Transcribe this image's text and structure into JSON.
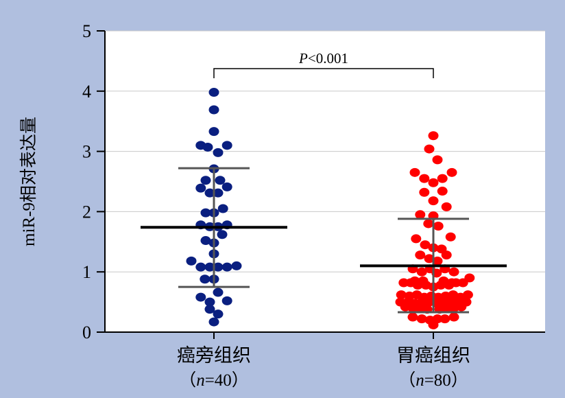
{
  "chart_data": {
    "type": "scatter",
    "ylabel": "miR-9相对表达量",
    "ylim": [
      0,
      5
    ],
    "yticks": [
      0,
      1,
      2,
      3,
      4,
      5
    ],
    "grid": true,
    "categories": [
      {
        "name": "癌旁组织",
        "n_label": "（n=40）",
        "n_prefix": "（",
        "n_italic": "n",
        "n_suffix": "=40）"
      },
      {
        "name": "胃癌组织",
        "n_label": "（n=80）",
        "n_prefix": "（",
        "n_italic": "n",
        "n_suffix": "=80）"
      }
    ],
    "annotation": {
      "text": "P<0.001",
      "italic": "P",
      "rest": "<0.001"
    },
    "colors": {
      "group1": "#0a1f80",
      "group2": "#ff0000",
      "summary": "#000000",
      "whisker": "#555555",
      "background": "#b0bfdf",
      "plot_bg": "#ffffff",
      "grid": "#c8c8c8"
    },
    "series": [
      {
        "group": 0,
        "mean": 1.74,
        "sd_upper": 2.72,
        "sd_lower": 0.75,
        "points": [
          [
            0,
            3.98
          ],
          [
            0,
            3.69
          ],
          [
            0,
            3.33
          ],
          [
            -0.32,
            3.1
          ],
          [
            -0.15,
            3.07
          ],
          [
            0.1,
            2.98
          ],
          [
            0.32,
            3.1
          ],
          [
            0,
            2.71
          ],
          [
            -0.2,
            2.52
          ],
          [
            0.15,
            2.52
          ],
          [
            -0.32,
            2.39
          ],
          [
            -0.1,
            2.31
          ],
          [
            0.1,
            2.31
          ],
          [
            0.32,
            2.41
          ],
          [
            -0.2,
            1.98
          ],
          [
            0,
            1.98
          ],
          [
            0.22,
            2.05
          ],
          [
            -0.32,
            1.78
          ],
          [
            -0.1,
            1.75
          ],
          [
            0.1,
            1.75
          ],
          [
            0.32,
            1.78
          ],
          [
            -0.2,
            1.52
          ],
          [
            0,
            1.48
          ],
          [
            0.2,
            1.62
          ],
          [
            0,
            1.3
          ],
          [
            -0.55,
            1.18
          ],
          [
            -0.32,
            1.08
          ],
          [
            -0.1,
            1.08
          ],
          [
            0.1,
            1.08
          ],
          [
            0.32,
            1.08
          ],
          [
            0.55,
            1.1
          ],
          [
            -0.22,
            0.88
          ],
          [
            0,
            0.88
          ],
          [
            -0.32,
            0.58
          ],
          [
            -0.1,
            0.5
          ],
          [
            0.1,
            0.66
          ],
          [
            0.32,
            0.52
          ],
          [
            -0.1,
            0.38
          ],
          [
            0.1,
            0.3
          ],
          [
            0,
            0.17
          ]
        ]
      },
      {
        "group": 1,
        "mean": 1.1,
        "sd_upper": 1.88,
        "sd_lower": 0.33,
        "points": [
          [
            0,
            3.26
          ],
          [
            -0.1,
            3.04
          ],
          [
            0.1,
            2.86
          ],
          [
            -0.45,
            2.65
          ],
          [
            -0.22,
            2.55
          ],
          [
            0,
            2.48
          ],
          [
            0.22,
            2.55
          ],
          [
            0.45,
            2.65
          ],
          [
            -0.22,
            2.32
          ],
          [
            0.22,
            2.34
          ],
          [
            0,
            2.18
          ],
          [
            -0.32,
            1.95
          ],
          [
            0,
            1.93
          ],
          [
            0.32,
            2.08
          ],
          [
            -0.12,
            1.8
          ],
          [
            0.12,
            1.76
          ],
          [
            -0.42,
            1.55
          ],
          [
            -0.2,
            1.45
          ],
          [
            0,
            1.4
          ],
          [
            0.2,
            1.38
          ],
          [
            0.42,
            1.58
          ],
          [
            -0.32,
            1.28
          ],
          [
            -0.1,
            1.22
          ],
          [
            0.1,
            1.18
          ],
          [
            0.32,
            1.28
          ],
          [
            -0.5,
            1.05
          ],
          [
            -0.28,
            1.0
          ],
          [
            -0.08,
            1.05
          ],
          [
            0.08,
            0.98
          ],
          [
            0.28,
            1.05
          ],
          [
            0.5,
            1.0
          ],
          [
            -0.45,
            0.85
          ],
          [
            -0.25,
            0.85
          ],
          [
            0.25,
            0.85
          ],
          [
            0.45,
            0.82
          ],
          [
            -0.72,
            0.82
          ],
          [
            -0.55,
            0.82
          ],
          [
            -0.38,
            0.78
          ],
          [
            -0.18,
            0.78
          ],
          [
            0,
            0.75
          ],
          [
            0.18,
            0.78
          ],
          [
            0.38,
            0.78
          ],
          [
            0.55,
            0.82
          ],
          [
            0.72,
            0.82
          ],
          [
            0.88,
            0.9
          ],
          [
            -0.78,
            0.62
          ],
          [
            -0.58,
            0.6
          ],
          [
            -0.4,
            0.62
          ],
          [
            -0.22,
            0.58
          ],
          [
            -0.05,
            0.6
          ],
          [
            0.12,
            0.58
          ],
          [
            0.3,
            0.6
          ],
          [
            0.48,
            0.62
          ],
          [
            0.66,
            0.58
          ],
          [
            0.84,
            0.62
          ],
          [
            -0.8,
            0.5
          ],
          [
            -0.62,
            0.5
          ],
          [
            -0.45,
            0.48
          ],
          [
            -0.28,
            0.5
          ],
          [
            -0.1,
            0.5
          ],
          [
            0.08,
            0.48
          ],
          [
            0.26,
            0.5
          ],
          [
            0.44,
            0.52
          ],
          [
            0.62,
            0.5
          ],
          [
            0.8,
            0.5
          ],
          [
            -0.68,
            0.42
          ],
          [
            -0.5,
            0.4
          ],
          [
            -0.32,
            0.4
          ],
          [
            -0.15,
            0.38
          ],
          [
            0.15,
            0.38
          ],
          [
            0.32,
            0.4
          ],
          [
            0.5,
            0.4
          ],
          [
            0.68,
            0.42
          ],
          [
            -0.5,
            0.25
          ],
          [
            -0.28,
            0.22
          ],
          [
            -0.08,
            0.2
          ],
          [
            0.1,
            0.22
          ],
          [
            0.28,
            0.22
          ],
          [
            0.5,
            0.25
          ],
          [
            0,
            0.12
          ]
        ]
      }
    ]
  }
}
